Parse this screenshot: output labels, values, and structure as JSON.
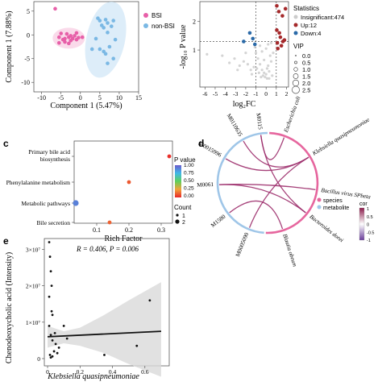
{
  "panels": {
    "c": {
      "label": "c"
    },
    "d": {
      "label": "d"
    },
    "e": {
      "label": "e"
    }
  },
  "chart_data": [
    {
      "type": "scatter",
      "panel": "pca",
      "xlabel": "Component 1 (5.47%)",
      "ylabel": "Component 1 (7.88%)",
      "xlim": [
        -12,
        15
      ],
      "ylim": [
        -12,
        7
      ],
      "xticks": [
        "-10",
        "-5",
        "0",
        "5",
        "10",
        "15"
      ],
      "yticks": [
        "-10",
        "-5",
        "0",
        "5"
      ],
      "legend_position": "top-right",
      "series": [
        {
          "name": "BSI",
          "color": "#e75fa8",
          "x": [
            -6.5,
            -5.5,
            -5,
            -4.5,
            -4,
            -3.5,
            -3,
            -2.5,
            -2,
            -1.5,
            -1,
            -0.5,
            0.5,
            -3,
            -4,
            -5.5,
            -2.5,
            -1
          ],
          "y": [
            5.5,
            -0.5,
            0.3,
            -1,
            -0.8,
            0.2,
            -0.5,
            -1.2,
            -0.8,
            -0.2,
            -1,
            -0.6,
            -0.5,
            -1.8,
            -1.5,
            -1.7,
            -0.2,
            0.4
          ]
        },
        {
          "name": "non-BSI",
          "color": "#7ab8e4",
          "x": [
            4.5,
            5,
            5.5,
            6,
            6.5,
            7,
            7,
            8,
            8.5,
            9,
            5,
            6,
            7.5,
            4,
            6.5,
            8.5,
            7,
            3
          ],
          "y": [
            3.5,
            3,
            2,
            1.5,
            3.2,
            2.5,
            0.5,
            1.8,
            3,
            -1,
            -3,
            -3.5,
            -2.5,
            -0.8,
            -4,
            -5,
            -6,
            -3
          ]
        }
      ]
    },
    {
      "type": "scatter",
      "panel": "volcano",
      "xlabel": "log₂FC",
      "ylabel": "-log₁₀ P value",
      "xlim": [
        -6.5,
        2.2
      ],
      "ylim": [
        -0.3,
        2.7
      ],
      "xticks": [
        "-6",
        "-5",
        "-4",
        "-3",
        "-2",
        "-1",
        "0",
        "1",
        "2"
      ],
      "yticks": [
        "1",
        "2"
      ],
      "legend_position": "right",
      "legend_title": "Statistics",
      "series": [
        {
          "name": "Insignificant:474",
          "color": "#cccccc",
          "x": [
            -5.8,
            -4.3,
            -3.6,
            -3.1,
            -2.6,
            -2.2,
            -1.8,
            -1.5,
            -1.2,
            -1.0,
            -0.8,
            -0.6,
            -0.4,
            -0.2,
            0.0,
            0.1,
            0.2,
            0.3,
            0.5,
            0.6,
            -0.5,
            -0.3,
            -0.1,
            0.1,
            0.3,
            -0.7,
            -1.4,
            -0.9,
            0.4,
            -0.2,
            0.0,
            0.2,
            -0.6,
            -0.4,
            0.5,
            -1.1,
            -2.0,
            -2.8,
            0.7
          ],
          "y": [
            0.85,
            0.8,
            0.55,
            0.7,
            0.45,
            0.6,
            0.5,
            0.3,
            0.4,
            0.9,
            0.7,
            0.5,
            0.3,
            0.2,
            0.15,
            0.35,
            0.45,
            0.25,
            0.6,
            0.1,
            0.05,
            0.1,
            0.05,
            0.0,
            0.0,
            0.2,
            0.15,
            0.35,
            0.8,
            0.65,
            1.05,
            1.2,
            1.15,
            0.95,
            1.25,
            1.1,
            0.9,
            0.3,
            0.9
          ]
        },
        {
          "name": "Up:12",
          "color": "#a5292b",
          "x": [
            1.05,
            1.25,
            1.6,
            1.9,
            1.05,
            1.4,
            1.65,
            1.15,
            1.5,
            1.8,
            1.1,
            1.3
          ],
          "y": [
            2.55,
            2.35,
            2.2,
            2.45,
            1.7,
            1.45,
            1.3,
            1.05,
            1.15,
            1.35,
            1.25,
            1.6
          ]
        },
        {
          "name": "Down:4",
          "color": "#2b6aa8",
          "x": [
            -2.2,
            -1.6,
            -1.3,
            -1.1
          ],
          "y": [
            1.3,
            1.6,
            1.4,
            1.2
          ]
        }
      ],
      "size_legend": {
        "title": "VIP",
        "values": [
          "0.0",
          "0.5",
          "1.0",
          "1.5",
          "2.0",
          "2.5"
        ]
      },
      "reference_lines": {
        "vertical": [
          -1,
          1
        ],
        "horizontal": [
          1.3
        ]
      }
    },
    {
      "type": "scatter",
      "panel": "c",
      "title": "",
      "xlabel": "Rich Factor",
      "ylabel": "",
      "categories": [
        "Primary bile acid biosynthesis",
        "Phenylalanine metabolism",
        "Metabolic pathways",
        "Bile secretion"
      ],
      "xlim": [
        0.03,
        0.335
      ],
      "xticks": [
        "0.1",
        "0.2",
        "0.3"
      ],
      "points": [
        {
          "category": "Primary bile acid biosynthesis",
          "x": 0.325,
          "p": 0.02,
          "count": 1
        },
        {
          "category": "Phenylalanine metabolism",
          "x": 0.2,
          "p": 0.1,
          "count": 1
        },
        {
          "category": "Metabolic pathways",
          "x": 0.035,
          "p": 0.9,
          "count": 2
        },
        {
          "category": "Bile secretion",
          "x": 0.14,
          "p": 0.12,
          "count": 1
        }
      ],
      "colorbar": {
        "title": "P value",
        "ticks": [
          "1.00",
          "0.75",
          "0.50",
          "0.25",
          "0.00"
        ]
      },
      "size_legend": {
        "title": "Count",
        "values": [
          "1",
          "2"
        ]
      }
    },
    {
      "type": "chord",
      "panel": "d",
      "nodes": [
        {
          "name": "Escherichia coli",
          "group": "species"
        },
        {
          "name": "Klebsiella quasipneumoniae",
          "group": "species"
        },
        {
          "name": "Bacillus virus SPbeta",
          "group": "species"
        },
        {
          "name": "Bacteroides dorei",
          "group": "species"
        },
        {
          "name": "Blautia obeum",
          "group": "species"
        },
        {
          "name": "M0005090",
          "group": "metabolite"
        },
        {
          "name": "M1580",
          "group": "metabolite"
        },
        {
          "name": "M0061",
          "group": "metabolite"
        },
        {
          "name": "M0015996",
          "group": "metabolite"
        },
        {
          "name": "M0110635",
          "group": "metabolite"
        },
        {
          "name": "M0115",
          "group": "metabolite"
        }
      ],
      "legend": [
        {
          "label": "species",
          "color": "#e6669e"
        },
        {
          "label": "metabolite",
          "color": "#9fc6e8"
        }
      ],
      "colorbar": {
        "title": "cor",
        "ticks": [
          "1",
          "0.5",
          "0",
          "-0.5",
          "-1"
        ]
      },
      "links": [
        {
          "from": "M0110635",
          "to": "Klebsiella quasipneumoniae"
        },
        {
          "from": "M0015996",
          "to": "Klebsiella quasipneumoniae"
        },
        {
          "from": "M0061",
          "to": "Bacillus virus SPbeta"
        },
        {
          "from": "M0061",
          "to": "Bacteroides dorei"
        },
        {
          "from": "M1580",
          "to": "Blautia obeum"
        },
        {
          "from": "M0005090",
          "to": "Klebsiella quasipneumoniae"
        },
        {
          "from": "M0115",
          "to": "Bacteroides dorei"
        },
        {
          "from": "M0115",
          "to": "Escherichia coli"
        }
      ]
    },
    {
      "type": "scatter",
      "panel": "e",
      "xlabel": "Klebsiella quasipneumoniae",
      "ylabel": "Chenodeoxycholic acid (Intensity)",
      "annotation": "R = 0.406, P = 0.006",
      "xlim": [
        -0.02,
        0.75
      ],
      "ylim": [
        -2000000,
        33000000
      ],
      "xticks": [
        "0",
        "0.2",
        "0.4",
        "0.6"
      ],
      "yticks": [
        "0",
        "1×10⁷",
        "2×10⁷",
        "3×10⁷"
      ],
      "x": [
        0.01,
        0.015,
        0.02,
        0.025,
        0.03,
        0.01,
        0.02,
        0.03,
        0.05,
        0.07,
        0.1,
        0.12,
        0.04,
        0.015,
        0.03,
        0.02,
        0.06,
        0.35,
        0.55,
        0.63,
        0.01,
        0.025,
        0.045
      ],
      "y": [
        32000000,
        28000000,
        24000000,
        20000000,
        12000000,
        9000000,
        6500000,
        5000000,
        4000000,
        3000000,
        9000000,
        5500000,
        2000000,
        1000000,
        600000,
        300000,
        1500000,
        1000000,
        3500000,
        16000000,
        17000000,
        13000000,
        7000000
      ],
      "fit": {
        "x": [
          0,
          0.7
        ],
        "y": [
          6000000,
          7500000
        ]
      },
      "band_upper": [
        9000000,
        7500000,
        8500000,
        12000000,
        16000000,
        21000000
      ],
      "band_lower": [
        3000000,
        4200000,
        3500000,
        1500000,
        -1500000,
        -5000000
      ],
      "band_x": [
        0,
        0.1,
        0.2,
        0.35,
        0.5,
        0.7
      ]
    }
  ]
}
